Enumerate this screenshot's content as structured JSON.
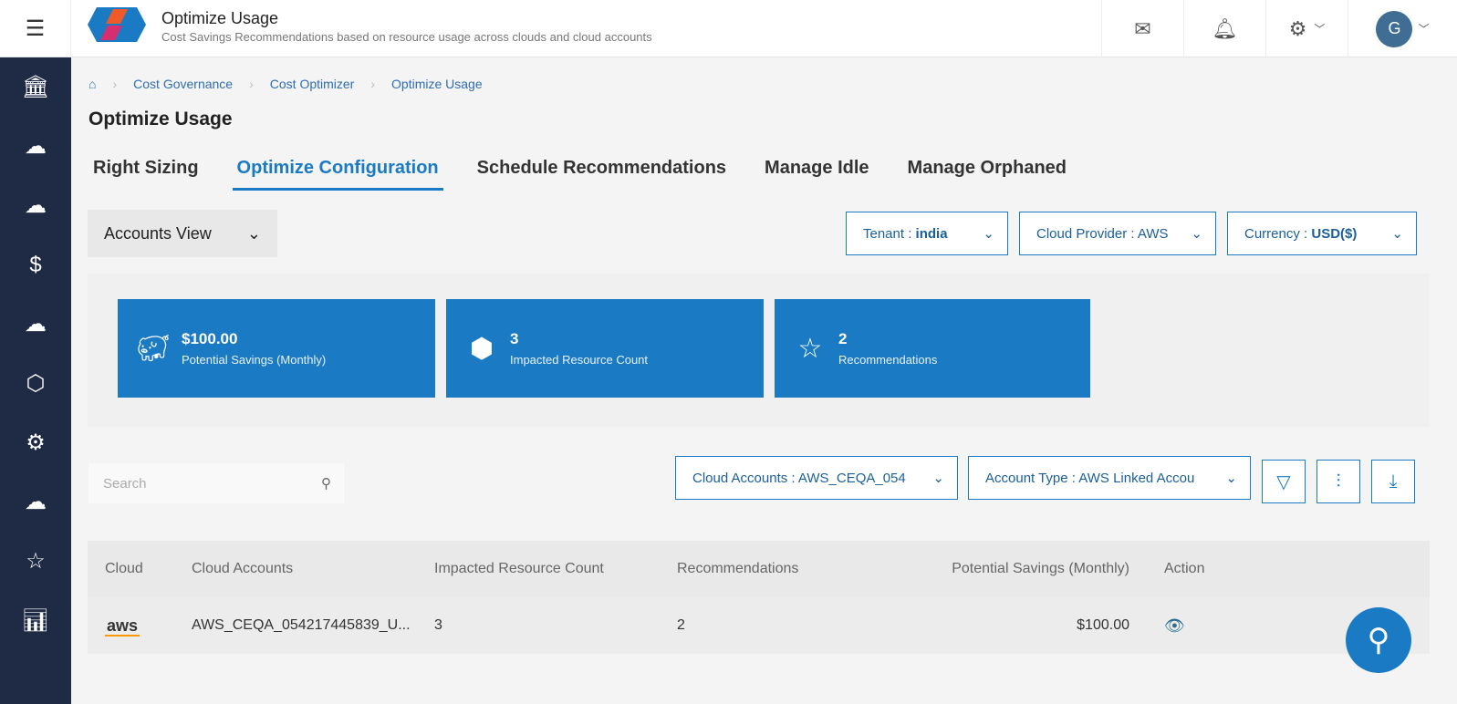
{
  "header": {
    "title": "Optimize Usage",
    "subtitle": "Cost Savings Recommendations based on resource usage across clouds and cloud accounts",
    "avatar_initial": "G"
  },
  "breadcrumb": [
    "Cost Governance",
    "Cost Optimizer",
    "Optimize Usage"
  ],
  "page_title": "Optimize Usage",
  "tabs": [
    {
      "label": "Right Sizing"
    },
    {
      "label": "Optimize Configuration",
      "active": true
    },
    {
      "label": "Schedule Recommendations"
    },
    {
      "label": "Manage Idle"
    },
    {
      "label": "Manage Orphaned"
    }
  ],
  "view_select": "Accounts View",
  "filters": {
    "tenant_label": "Tenant : ",
    "tenant": "india",
    "provider": "Cloud Provider : AWS",
    "currency_label": "Currency : ",
    "currency": "USD($)"
  },
  "cards": [
    {
      "value": "$100.00",
      "label": "Potential Savings (Monthly)"
    },
    {
      "value": "3",
      "label": "Impacted Resource Count"
    },
    {
      "value": "2",
      "label": "Recommendations"
    }
  ],
  "search": {
    "placeholder": "Search"
  },
  "table_filters": {
    "cloud_accounts": "Cloud Accounts : AWS_CEQA_054",
    "account_type": "Account Type : AWS Linked Accou"
  },
  "table": {
    "headers": [
      "Cloud",
      "Cloud Accounts",
      "Impacted Resource Count",
      "Recommendations",
      "Potential Savings (Monthly)",
      "Action"
    ],
    "rows": [
      {
        "cloud": "aws",
        "account": "AWS_CEQA_054217445839_U...",
        "impacted": "3",
        "recommendations": "2",
        "savings": "$100.00"
      }
    ]
  },
  "colors": {
    "accent": "#1a7bc4",
    "sidebar": "#1f2a44"
  }
}
